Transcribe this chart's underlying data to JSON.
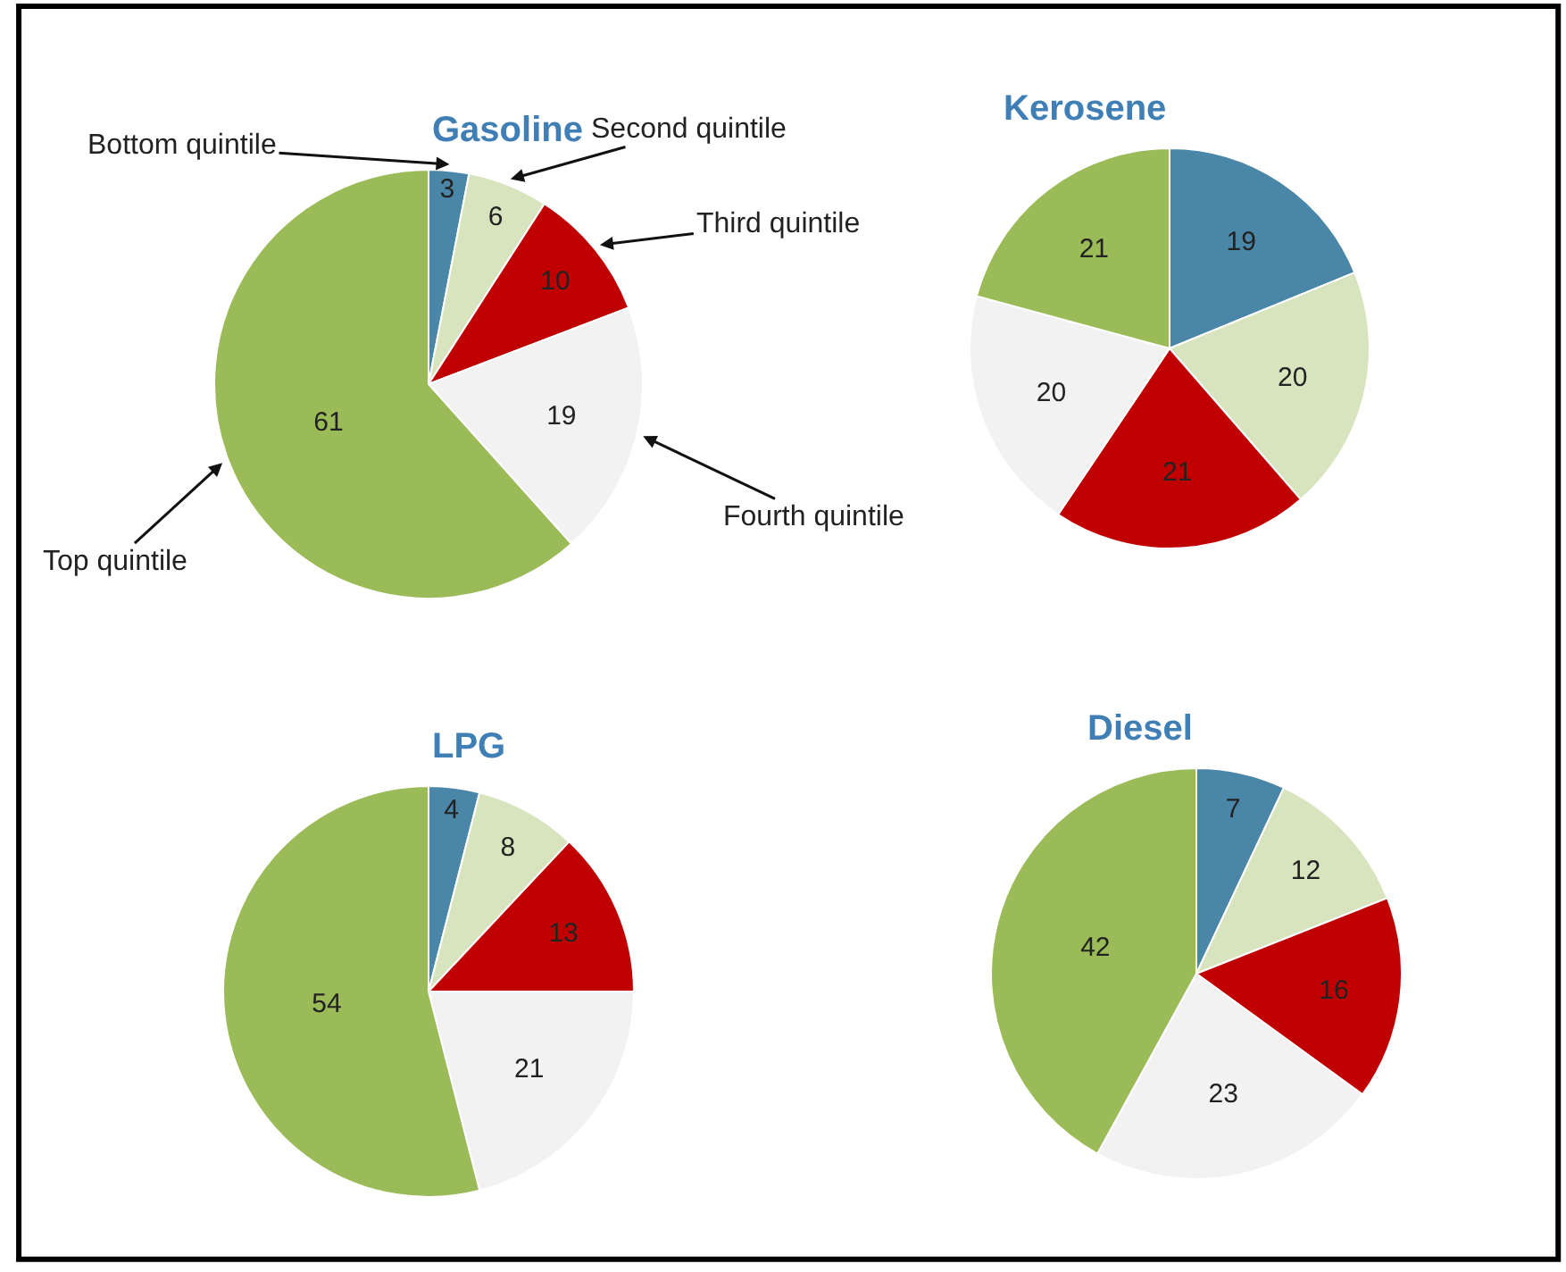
{
  "chart_data": [
    {
      "type": "pie",
      "title": "Gasoline",
      "categories": [
        "Bottom quintile",
        "Second quintile",
        "Third quintile",
        "Fourth quintile",
        "Top quintile"
      ],
      "values": [
        3,
        6,
        10,
        19,
        61
      ],
      "colors": [
        "#4a86a8",
        "#d7e4bd",
        "#c00000",
        "#f2f2f2",
        "#9bbb59"
      ],
      "data_labels": true,
      "legend": false
    },
    {
      "type": "pie",
      "title": "Kerosene",
      "categories": [
        null,
        null,
        null,
        null,
        null
      ],
      "values": [
        19,
        20,
        21,
        20,
        21
      ],
      "colors": [
        "#4a86a8",
        "#d7e4bd",
        "#c00000",
        "#f2f2f2",
        "#9bbb59"
      ],
      "data_labels": true,
      "legend": false
    },
    {
      "type": "pie",
      "title": "LPG",
      "categories": [
        null,
        null,
        null,
        null,
        null
      ],
      "values": [
        4,
        8,
        13,
        21,
        54
      ],
      "colors": [
        "#4a86a8",
        "#d7e4bd",
        "#c00000",
        "#f2f2f2",
        "#9bbb59"
      ],
      "data_labels": true,
      "legend": false
    },
    {
      "type": "pie",
      "title": "Diesel",
      "categories": [
        null,
        null,
        null,
        null,
        null
      ],
      "values": [
        7,
        12,
        16,
        23,
        42
      ],
      "colors": [
        "#4a86a8",
        "#d7e4bd",
        "#c00000",
        "#f2f2f2",
        "#9bbb59"
      ],
      "data_labels": true,
      "legend": false
    }
  ]
}
